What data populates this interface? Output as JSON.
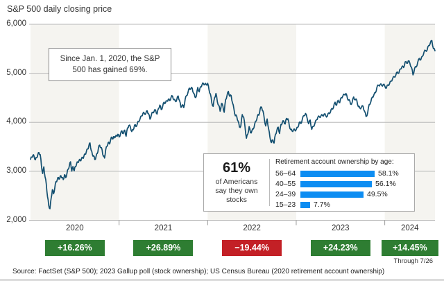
{
  "chart": {
    "title": "S&P 500 daily closing price",
    "annotation": {
      "line1": "Since Jan. 1, 2020, the S&P",
      "line2": "500 has gained 69%."
    },
    "through_note": "Through 7/26",
    "colors": {
      "line": "#134f70",
      "band": "#f5f4f0",
      "grid": "#b8b8b8",
      "tick": "#999999",
      "gain_green": "#2e7d32",
      "loss_red": "#c32026",
      "bar_blue": "#0d8df2"
    },
    "years": [
      {
        "label": "2020",
        "change": "+16.26%",
        "direction": "up"
      },
      {
        "label": "2021",
        "change": "+26.89%",
        "direction": "up"
      },
      {
        "label": "2022",
        "change": "−19.44%",
        "direction": "down"
      },
      {
        "label": "2023",
        "change": "+24.23%",
        "direction": "up"
      },
      {
        "label": "2024",
        "change": "+14.45%",
        "direction": "up"
      }
    ]
  },
  "stat_box": {
    "own_pct": "61%",
    "own_lines": [
      "of Americans",
      "say they own",
      "stocks"
    ],
    "bars_title": "Retirement account ownership by age:"
  },
  "source": "Source: FactSet (S&P 500); 2023 Gallup poll (stock ownership); US Census Bureau (2020 retirement account ownership)",
  "chart_data": [
    {
      "type": "line",
      "title": "S&P 500 daily closing price",
      "ylabel": "",
      "xlabel": "",
      "ylim": [
        2000,
        6000
      ],
      "y_ticks": [
        "6,000",
        "5,000",
        "4,000",
        "3,000",
        "2,000"
      ],
      "x_ticks": [
        "2020",
        "2021",
        "2022",
        "2023",
        "2024"
      ],
      "x_range_years_from_2020": [
        0,
        4.567
      ],
      "grid": "horizontal",
      "series": [
        {
          "name": "S&P 500 daily close",
          "segments": [
            {
              "start": 0,
              "end": 1,
              "values": [
                3245,
                3290,
                3330,
                3300,
                3235,
                3280,
                3338,
                3380,
                3340,
                3116,
                2954,
                3090,
                2882,
                2741,
                2481,
                2305,
                2237,
                2447,
                2626,
                2541,
                2663,
                2790,
                2823,
                2875,
                2848,
                2912,
                2868,
                2830,
                2930,
                2870,
                2955,
                3044,
                3115,
                3194,
                3002,
                3097,
                3009,
                3100,
                3155,
                3185,
                3225,
                3216,
                3258,
                3271,
                3306,
                3349,
                3397,
                3455,
                3508,
                3580,
                3427,
                3340,
                3319,
                3237,
                3298,
                3363,
                3477,
                3534,
                3484,
                3435,
                3310,
                3270,
                3443,
                3510,
                3585,
                3558,
                3638,
                3699,
                3663,
                3709,
                3703,
                3722,
                3756
              ]
            },
            {
              "start": 1,
              "end": 2,
              "values": [
                3700,
                3764,
                3825,
                3768,
                3841,
                3714,
                3886,
                3935,
                3907,
                3811,
                3842,
                3943,
                3913,
                3975,
                4020,
                4077,
                4129,
                4185,
                4180,
                4181,
                4233,
                4174,
                4063,
                4156,
                4204,
                4230,
                4247,
                4166,
                4281,
                4352,
                4258,
                4327,
                4412,
                4395,
                4437,
                4468,
                4442,
                4509,
                4535,
                4459,
                4433,
                4455,
                4537,
                4443,
                4307,
                4357,
                4300,
                4471,
                4545,
                4605,
                4698,
                4683,
                4698,
                4595,
                4513,
                4538,
                4712,
                4621,
                4726,
                4766,
                4793,
                4778,
                4766
              ]
            },
            {
              "start": 2,
              "end": 3,
              "values": [
                4796,
                4663,
                4577,
                4398,
                4326,
                4501,
                4589,
                4419,
                4349,
                4226,
                4385,
                4329,
                4204,
                4463,
                4543,
                4631,
                4530,
                4546,
                4393,
                4272,
                4132,
                4123,
                4024,
                3901,
                3930,
                4158,
                4109,
                3900,
                3675,
                3760,
                3912,
                3785,
                3825,
                3863,
                3962,
                4023,
                4130,
                4145,
                4280,
                4305,
                4228,
                4058,
                3924,
                4067,
                3873,
                3693,
                3586,
                3640,
                3577,
                3753,
                3830,
                3901,
                3771,
                3957,
                3993,
                4027,
                3965,
                4080,
                4072,
                3934,
                3852,
                3822,
                3844,
                3840
              ]
            },
            {
              "start": 3,
              "end": 4,
              "values": [
                3853,
                3895,
                3999,
                3973,
                4071,
                4136,
                4180,
                4090,
                3970,
                4046,
                3856,
                3917,
                3971,
                4050,
                4109,
                4105,
                4138,
                4134,
                4169,
                4136,
                4124,
                4192,
                4205,
                4282,
                4299,
                4410,
                4348,
                4450,
                4399,
                4505,
                4536,
                4566,
                4589,
                4478,
                4464,
                4370,
                4406,
                4516,
                4457,
                4450,
                4320,
                4288,
                4309,
                4328,
                4224,
                4117,
                4194,
                4365,
                4415,
                4514,
                4559,
                4604,
                4719,
                4755,
                4770,
                4754,
                4769
              ]
            },
            {
              "start": 4,
              "end": 4.567,
              "values": [
                4743,
                4697,
                4764,
                4784,
                4840,
                4891,
                4928,
                4959,
                5027,
                5006,
                5089,
                5137,
                5117,
                5234,
                5204,
                5254,
                5204,
                5123,
                4967,
                5100,
                5128,
                5223,
                5303,
                5278,
                5347,
                5432,
                5465,
                5475,
                5567,
                5615,
                5667,
                5505,
                5459
              ]
            }
          ]
        }
      ],
      "annotations": [
        "Since Jan. 1, 2020, the S&P 500 has gained 69%.",
        "+16.26% (2020)",
        "+26.89% (2021)",
        "−19.44% (2022)",
        "+24.23% (2023)",
        "+14.45% (2024, through 7/26)"
      ]
    },
    {
      "type": "bar",
      "title": "Retirement account ownership by age:",
      "categories": [
        "56–64",
        "40–55",
        "24–39",
        "15–23"
      ],
      "values": [
        58.1,
        56.1,
        49.5,
        7.7
      ],
      "value_labels": [
        "58.1%",
        "56.1%",
        "49.5%",
        "7.7%"
      ],
      "xlim": [
        0,
        60
      ],
      "orientation": "horizontal"
    }
  ]
}
